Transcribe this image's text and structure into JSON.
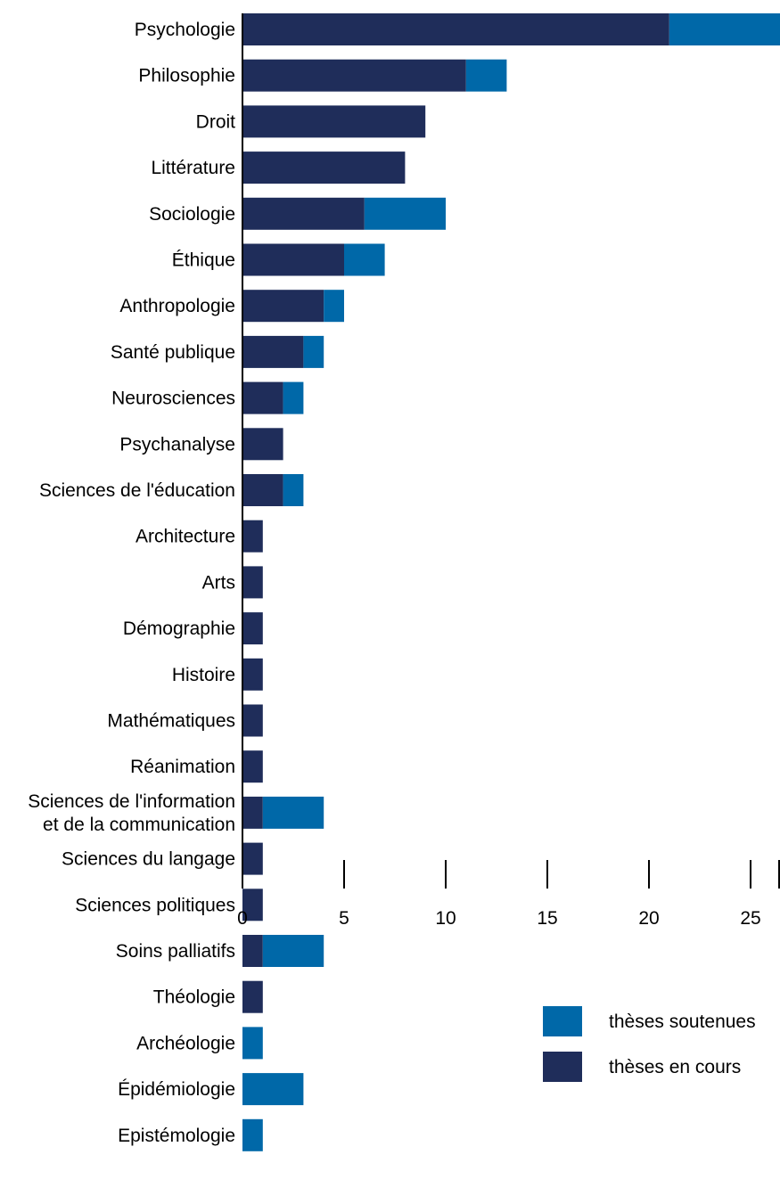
{
  "chart_data": {
    "type": "bar",
    "orientation": "horizontal",
    "stacked": true,
    "categories": [
      "Psychologie",
      "Philosophie",
      "Droit",
      "Littérature",
      "Sociologie",
      "Éthique",
      "Anthropologie",
      "Santé publique",
      "Neurosciences",
      "Psychanalyse",
      "Sciences de l'éducation",
      "Architecture",
      "Arts",
      "Démographie",
      "Histoire",
      "Mathématiques",
      "Réanimation",
      [
        "Sciences de l'information",
        "et de la communication"
      ],
      "Sciences du langage",
      "Sciences politiques",
      "Soins palliatifs",
      "Théologie",
      "Archéologie",
      "Épidémiologie",
      "Epistémologie"
    ],
    "series": [
      {
        "name": "thèses en cours",
        "color": "#1f2d5a",
        "values": [
          21,
          11,
          9,
          8,
          6,
          5,
          4,
          3,
          2,
          2,
          2,
          1,
          1,
          1,
          1,
          1,
          1,
          1,
          1,
          1,
          1,
          1,
          0,
          0,
          0
        ]
      },
      {
        "name": "thèses soutenues",
        "color": "#0068a8",
        "values": [
          6,
          2,
          0,
          0,
          4,
          2,
          1,
          1,
          1,
          0,
          1,
          0,
          0,
          0,
          0,
          0,
          0,
          3,
          0,
          0,
          3,
          0,
          1,
          3,
          1
        ]
      }
    ],
    "x_ticks": [
      "0",
      "5",
      "10",
      "15",
      "20",
      "25"
    ],
    "xlim": [
      0,
      26.3
    ],
    "grid": false,
    "legend": {
      "placement": "bottom-right",
      "entries": [
        {
          "label": "thèses soutenues",
          "color": "#0068a8"
        },
        {
          "label": "thèses en cours",
          "color": "#1f2d5a"
        }
      ]
    }
  }
}
